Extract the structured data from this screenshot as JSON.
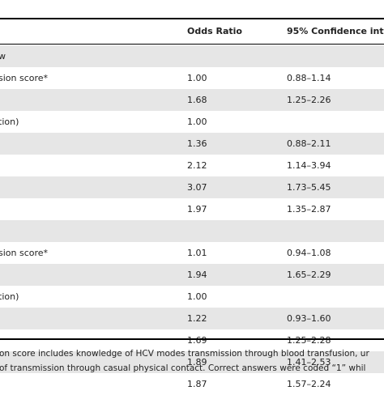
{
  "table": {
    "headers": [
      "",
      "Odds Ratio",
      "95% Confidence int"
    ],
    "rows": [
      {
        "label": "w",
        "or": "",
        "ci": "",
        "shade": true
      },
      {
        "label": "sion score*",
        "or": "1.00",
        "ci": "0.88–1.14",
        "shade": false
      },
      {
        "label": "",
        "or": "1.68",
        "ci": "1.25–2.26",
        "shade": true
      },
      {
        "label": "tion)",
        "or": "1.00",
        "ci": "",
        "shade": false
      },
      {
        "label": "",
        "or": "1.36",
        "ci": "0.88–2.11",
        "shade": true
      },
      {
        "label": "",
        "or": "2.12",
        "ci": "1.14–3.94",
        "shade": false
      },
      {
        "label": "",
        "or": "3.07",
        "ci": "1.73–5.45",
        "shade": true
      },
      {
        "label": "",
        "or": "1.97",
        "ci": "1.35–2.87",
        "shade": false
      },
      {
        "label": "",
        "or": "",
        "ci": "",
        "shade": true
      },
      {
        "label": "sion score*",
        "or": "1.01",
        "ci": "0.94–1.08",
        "shade": false
      },
      {
        "label": "",
        "or": "1.94",
        "ci": "1.65–2.29",
        "shade": true
      },
      {
        "label": "tion)",
        "or": "1.00",
        "ci": "",
        "shade": false
      },
      {
        "label": "",
        "or": "1.22",
        "ci": "0.93–1.60",
        "shade": true
      },
      {
        "label": "",
        "or": "1.69",
        "ci": "1.25–2.28",
        "shade": false
      },
      {
        "label": "",
        "or": "1.89",
        "ci": "1.41–2.53",
        "shade": true
      },
      {
        "label": "",
        "or": "1.87",
        "ci": "1.57–2.24",
        "shade": false
      }
    ]
  },
  "footnotes": {
    "line1": "on score includes knowledge of HCV modes transmission through blood transfusion, ur",
    "line2": "of transmission through casual physical contact. Correct answers were coded “1” whil"
  }
}
